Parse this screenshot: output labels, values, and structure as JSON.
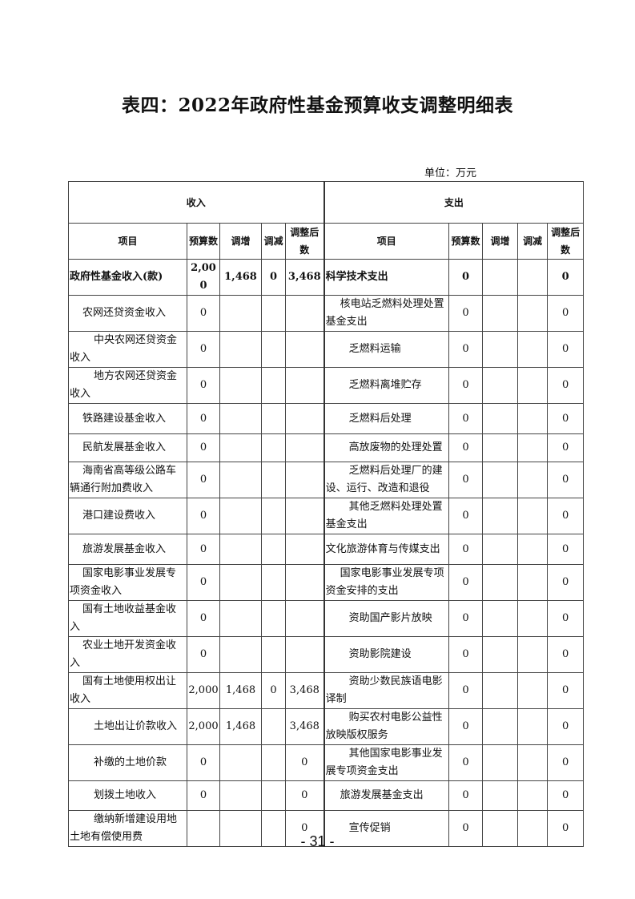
{
  "title": "表四：2022年政府性基金预算收支调整明细表",
  "unit": "单位：万元",
  "sections": {
    "income": "收入",
    "expense": "支出"
  },
  "columns": {
    "item": "项目",
    "budget": "预算数",
    "increase": "调增",
    "decrease": "调减",
    "adjusted": "调整后数"
  },
  "rows": [
    {
      "in_item": "政府性基金收入(款)",
      "in_level": 0,
      "in_vals": [
        "2,000",
        "1,468",
        "0",
        "3,468"
      ],
      "out_item": "科学技术支出",
      "out_level": 0,
      "out_vals": [
        "0",
        "",
        "",
        "0"
      ],
      "bold": true
    },
    {
      "in_item": "农网还贷资金收入",
      "in_level": 1,
      "in_vals": [
        "0",
        "",
        "",
        ""
      ],
      "out_item": "核电站乏燃料处理处置基金支出",
      "out_level": 1,
      "out_vals": [
        "0",
        "",
        "",
        "0"
      ]
    },
    {
      "in_item": "中央农网还贷资金收入",
      "in_level": 2,
      "in_vals": [
        "0",
        "",
        "",
        ""
      ],
      "out_item": "乏燃料运输",
      "out_level": 2,
      "out_vals": [
        "0",
        "",
        "",
        "0"
      ]
    },
    {
      "in_item": "地方农网还贷资金收入",
      "in_level": 2,
      "in_vals": [
        "0",
        "",
        "",
        ""
      ],
      "out_item": "乏燃料离堆贮存",
      "out_level": 2,
      "out_vals": [
        "0",
        "",
        "",
        "0"
      ]
    },
    {
      "in_item": "铁路建设基金收入",
      "in_level": 1,
      "in_vals": [
        "0",
        "",
        "",
        ""
      ],
      "out_item": "乏燃料后处理",
      "out_level": 2,
      "out_vals": [
        "0",
        "",
        "",
        "0"
      ]
    },
    {
      "in_item": "民航发展基金收入",
      "in_level": 1,
      "in_vals": [
        "0",
        "",
        "",
        ""
      ],
      "out_item": "高放废物的处理处置",
      "out_level": 2,
      "out_vals": [
        "0",
        "",
        "",
        "0"
      ]
    },
    {
      "in_item": "海南省高等级公路车辆通行附加费收入",
      "in_level": 1,
      "in_vals": [
        "0",
        "",
        "",
        ""
      ],
      "out_item": "乏燃料后处理厂的建设、运行、改造和退役",
      "out_level": 2,
      "out_vals": [
        "0",
        "",
        "",
        "0"
      ]
    },
    {
      "in_item": "港口建设费收入",
      "in_level": 1,
      "in_vals": [
        "0",
        "",
        "",
        ""
      ],
      "out_item": "其他乏燃料处理处置基金支出",
      "out_level": 2,
      "out_vals": [
        "0",
        "",
        "",
        "0"
      ]
    },
    {
      "in_item": "旅游发展基金收入",
      "in_level": 1,
      "in_vals": [
        "0",
        "",
        "",
        ""
      ],
      "out_item": "文化旅游体育与传媒支出",
      "out_level": 0,
      "out_vals": [
        "0",
        "",
        "",
        "0"
      ]
    },
    {
      "in_item": "国家电影事业发展专项资金收入",
      "in_level": 1,
      "in_vals": [
        "0",
        "",
        "",
        ""
      ],
      "out_item": "国家电影事业发展专项资金安排的支出",
      "out_level": 1,
      "out_vals": [
        "0",
        "",
        "",
        "0"
      ]
    },
    {
      "in_item": "国有土地收益基金收入",
      "in_level": 1,
      "in_vals": [
        "0",
        "",
        "",
        ""
      ],
      "out_item": "资助国产影片放映",
      "out_level": 2,
      "out_vals": [
        "0",
        "",
        "",
        "0"
      ]
    },
    {
      "in_item": "农业土地开发资金收入",
      "in_level": 1,
      "in_vals": [
        "0",
        "",
        "",
        ""
      ],
      "out_item": "资助影院建设",
      "out_level": 2,
      "out_vals": [
        "0",
        "",
        "",
        "0"
      ]
    },
    {
      "in_item": "国有土地使用权出让收入",
      "in_level": 1,
      "in_vals": [
        "2,000",
        "1,468",
        "0",
        "3,468"
      ],
      "out_item": "资助少数民族语电影译制",
      "out_level": 2,
      "out_vals": [
        "0",
        "",
        "",
        "0"
      ]
    },
    {
      "in_item": "土地出让价款收入",
      "in_level": 2,
      "in_vals": [
        "2,000",
        "1,468",
        "",
        "3,468"
      ],
      "out_item": "购买农村电影公益性放映版权服务",
      "out_level": 2,
      "out_vals": [
        "0",
        "",
        "",
        "0"
      ]
    },
    {
      "in_item": "补缴的土地价款",
      "in_level": 2,
      "in_vals": [
        "0",
        "",
        "",
        "0"
      ],
      "out_item": "其他国家电影事业发展专项资金支出",
      "out_level": 2,
      "out_vals": [
        "0",
        "",
        "",
        "0"
      ]
    },
    {
      "in_item": "划拨土地收入",
      "in_level": 2,
      "in_vals": [
        "0",
        "",
        "",
        "0"
      ],
      "out_item": "旅游发展基金支出",
      "out_level": 1,
      "out_vals": [
        "0",
        "",
        "",
        "0"
      ]
    },
    {
      "in_item": "缴纳新增建设用地土地有偿使用费",
      "in_level": 2,
      "in_vals": [
        "",
        "",
        "",
        "0"
      ],
      "out_item": "宣传促销",
      "out_level": 2,
      "out_vals": [
        "0",
        "",
        "",
        "0"
      ]
    }
  ],
  "page_number": "- 31 -"
}
